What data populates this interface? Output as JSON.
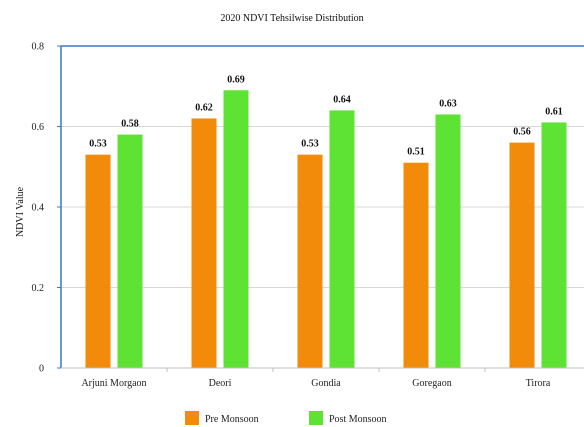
{
  "chart_data": {
    "type": "bar",
    "title": "2020 NDVI Tehsilwise Distribution",
    "xlabel": "",
    "ylabel": "NDVI Value",
    "categories": [
      "Arjuni Morgaon",
      "Deori",
      "Gondia",
      "Goregaon",
      "Tirora"
    ],
    "series": [
      {
        "name": "Pre Monsoon",
        "color": "#f28a0a",
        "values": [
          0.53,
          0.62,
          0.53,
          0.51,
          0.56
        ],
        "labels": [
          "0.53",
          "0.62",
          "0.53",
          "0.51",
          "0.56"
        ]
      },
      {
        "name": "Post Monsoon",
        "color": "#5ee335",
        "values": [
          0.58,
          0.69,
          0.64,
          0.63,
          0.61
        ],
        "labels": [
          "0.58",
          "0.69",
          "0.64",
          "0.63",
          "0.61"
        ]
      }
    ],
    "ylim": [
      0,
      0.8
    ],
    "yticks": [
      0,
      0.2,
      0.4,
      0.6,
      0.8
    ],
    "ytick_labels": [
      "0",
      "0.2",
      "0.4",
      "0.6",
      "0.8"
    ],
    "grid": true,
    "legend": "bottom-center",
    "axis_color": "#3a78c2",
    "grid_color": "#d8d8d8"
  }
}
